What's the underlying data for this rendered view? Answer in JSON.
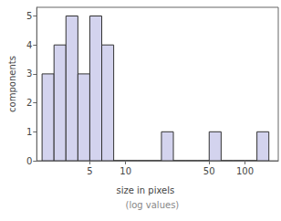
{
  "chart_data": {
    "type": "histogram",
    "xlabel": "size in pixels",
    "x_sublabel": "(log values)",
    "ylabel": "components",
    "bins": [
      1.9953,
      2.5119,
      3.1623,
      3.9811,
      5.0119,
      6.3096,
      7.9433,
      10,
      12.589,
      15.849,
      19.953,
      25.119,
      31.623,
      39.811,
      50.119,
      63.096,
      79.433,
      100,
      125.89,
      158.49
    ],
    "counts": [
      3,
      4,
      5,
      3,
      5,
      4,
      0,
      0,
      0,
      0,
      1,
      0,
      0,
      0,
      1,
      0,
      0,
      0,
      1
    ],
    "color": "#d3d3ee",
    "log": "x",
    "xlim": [
      1.8,
      190
    ],
    "xticks": [
      5,
      10,
      50,
      100
    ],
    "ylim": [
      0,
      5.3
    ],
    "yticks": [
      0,
      1,
      2,
      3,
      4,
      5
    ],
    "grid": false
  }
}
